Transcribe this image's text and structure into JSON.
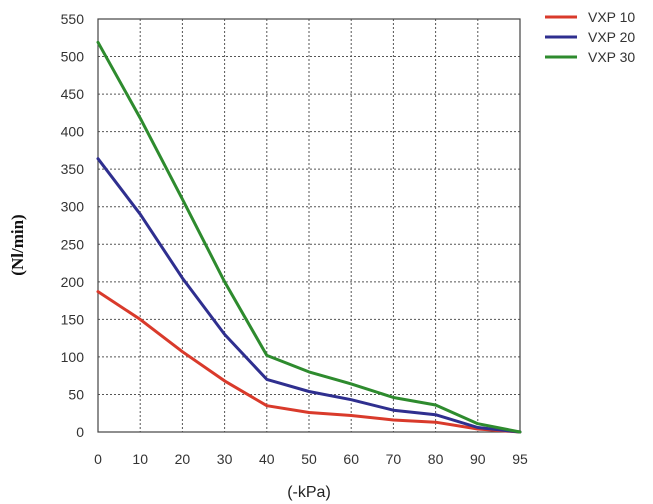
{
  "chart_data": {
    "type": "line",
    "xlabel": "(-kPa)",
    "ylabel": "(Nl/min)",
    "x_ticks": [
      "0",
      "10",
      "20",
      "30",
      "40",
      "50",
      "60",
      "70",
      "80",
      "90",
      "95"
    ],
    "y_ticks": [
      "0",
      "50",
      "100",
      "150",
      "200",
      "250",
      "300",
      "350",
      "400",
      "450",
      "500",
      "550"
    ],
    "ylim": [
      0,
      550
    ],
    "grid": true,
    "legend_position": "top-right",
    "series": [
      {
        "name": "VXP 10",
        "color": "#d93a2b",
        "values": [
          187,
          150,
          107,
          68,
          35,
          26,
          22,
          16,
          13,
          4,
          0
        ]
      },
      {
        "name": "VXP 20",
        "color": "#2f2f8f",
        "values": [
          364,
          290,
          205,
          130,
          70,
          54,
          43,
          29,
          23,
          6,
          0
        ]
      },
      {
        "name": "VXP 30",
        "color": "#2e8b2e",
        "values": [
          519,
          418,
          310,
          200,
          102,
          80,
          64,
          46,
          36,
          11,
          0
        ]
      }
    ]
  }
}
